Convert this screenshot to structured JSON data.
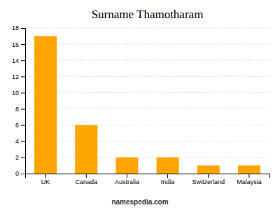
{
  "chart_data": {
    "type": "bar",
    "title": "Surname Thamotharam",
    "categories": [
      "UK",
      "Canada",
      "Australia",
      "India",
      "Switzerland",
      "Malaysia"
    ],
    "values": [
      17,
      6,
      2,
      2,
      1,
      1
    ],
    "color": "#FFA500",
    "ylim": [
      0,
      18
    ],
    "yticks": [
      0,
      2,
      4,
      6,
      8,
      10,
      12,
      14,
      16,
      18
    ],
    "grid": true,
    "annotations": [
      "namespedia.com"
    ]
  }
}
